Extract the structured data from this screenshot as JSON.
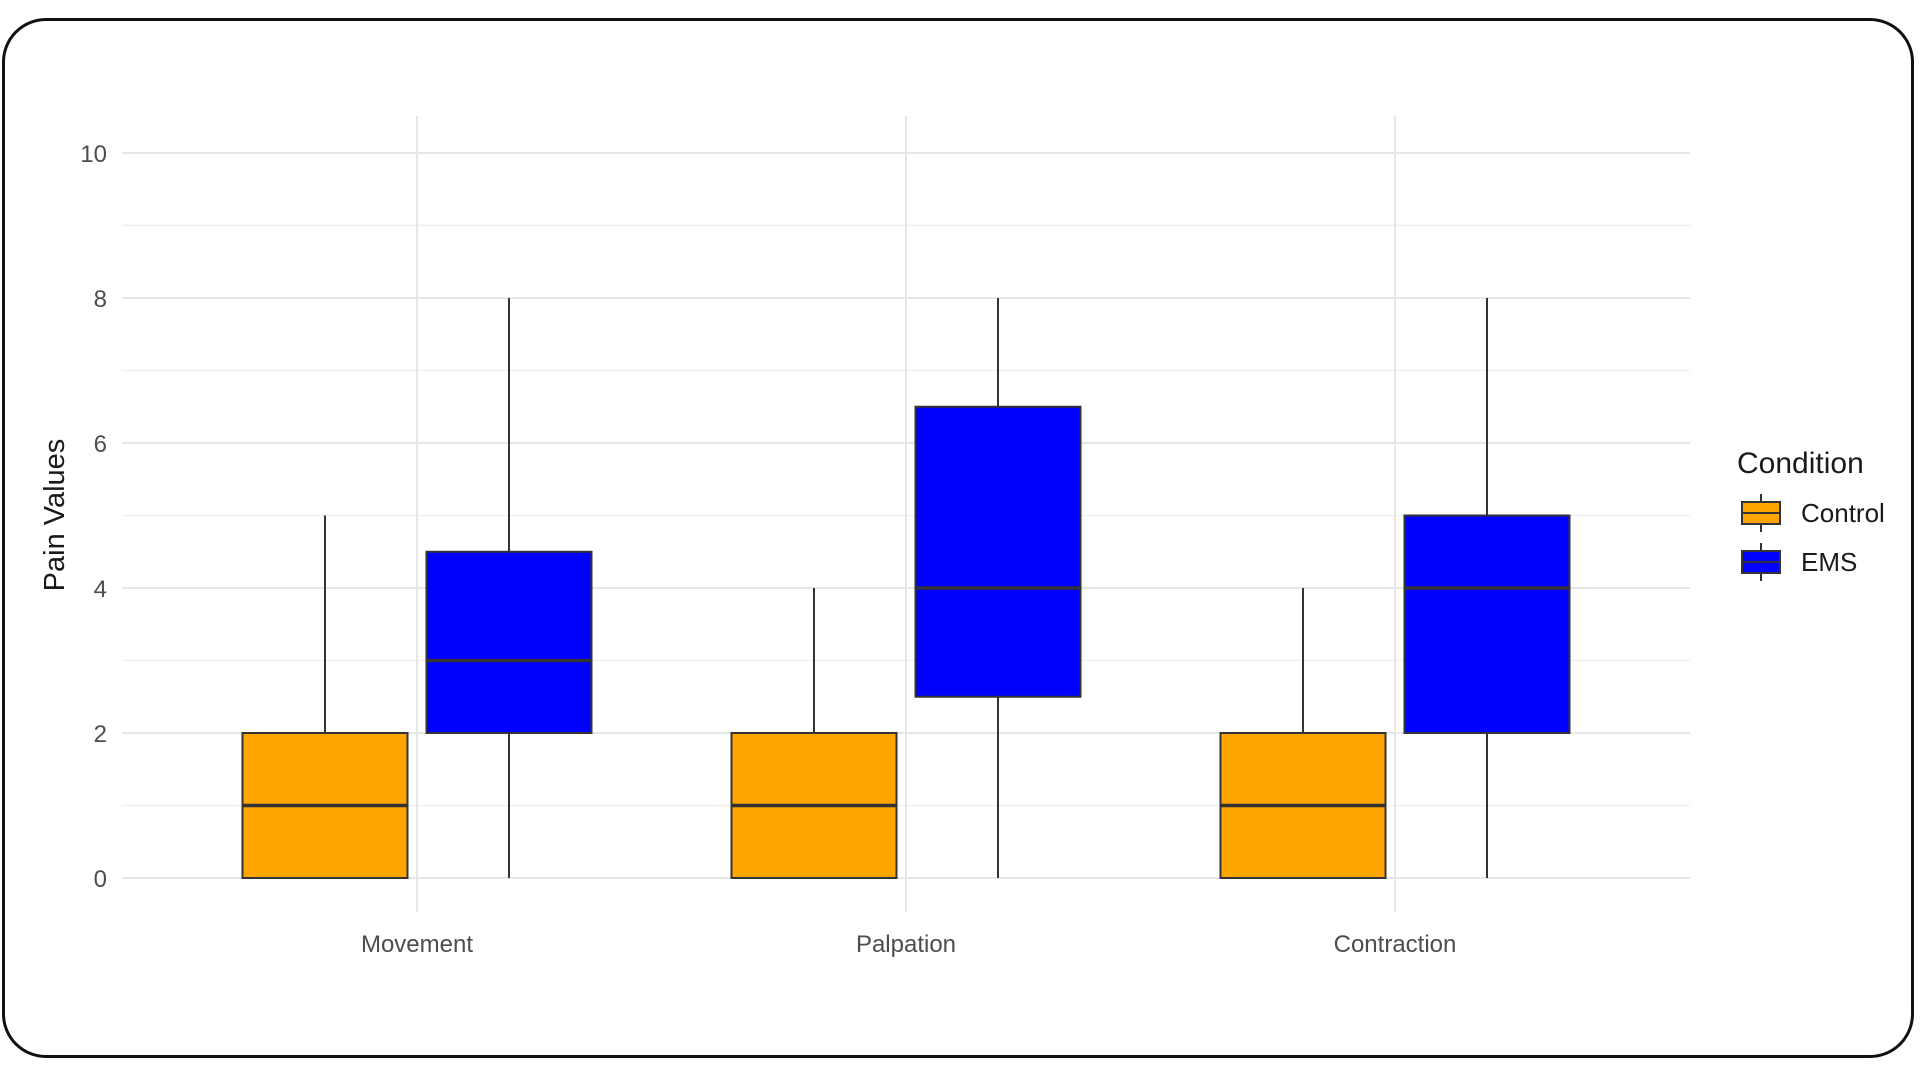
{
  "chart_data": {
    "type": "boxplot",
    "categories": [
      "Movement",
      "Palpation",
      "Contraction"
    ],
    "ylabel": "Pain Values",
    "xlabel": "",
    "ylim": [
      0,
      10
    ],
    "yticks": [
      0,
      2,
      4,
      6,
      8,
      10
    ],
    "grid": true,
    "legend": {
      "title": "Condition",
      "position": "right"
    },
    "series": [
      {
        "name": "Control",
        "color": "#FFA500",
        "boxes": [
          {
            "min": 0,
            "q1": 0,
            "median": 1,
            "q3": 2,
            "max": 5
          },
          {
            "min": 0,
            "q1": 0,
            "median": 1,
            "q3": 2,
            "max": 4
          },
          {
            "min": 0,
            "q1": 0,
            "median": 1,
            "q3": 2,
            "max": 4
          }
        ]
      },
      {
        "name": "EMS",
        "color": "#0000FF",
        "boxes": [
          {
            "min": 0,
            "q1": 2,
            "median": 3,
            "q3": 4.5,
            "max": 8
          },
          {
            "min": 0,
            "q1": 2.5,
            "median": 4,
            "q3": 6.5,
            "max": 8
          },
          {
            "min": 0,
            "q1": 2,
            "median": 4,
            "q3": 5,
            "max": 8
          }
        ]
      }
    ]
  }
}
